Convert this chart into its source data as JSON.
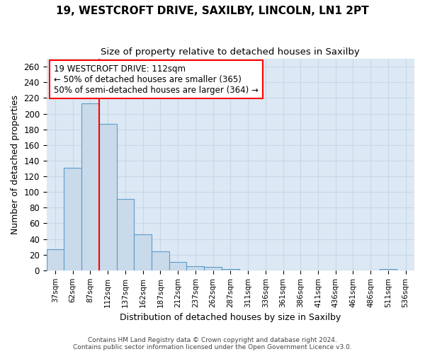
{
  "title1": "19, WESTCROFT DRIVE, SAXILBY, LINCOLN, LN1 2PT",
  "title2": "Size of property relative to detached houses in Saxilby",
  "xlabel": "Distribution of detached houses by size in Saxilby",
  "ylabel": "Number of detached properties",
  "categories": [
    "37sqm",
    "62sqm",
    "87sqm",
    "112sqm",
    "137sqm",
    "162sqm",
    "187sqm",
    "212sqm",
    "237sqm",
    "262sqm",
    "287sqm",
    "311sqm",
    "336sqm",
    "361sqm",
    "386sqm",
    "411sqm",
    "436sqm",
    "461sqm",
    "486sqm",
    "511sqm",
    "536sqm"
  ],
  "values": [
    27,
    131,
    213,
    187,
    91,
    46,
    24,
    11,
    5,
    4,
    2,
    0,
    0,
    0,
    0,
    0,
    0,
    0,
    0,
    2,
    0
  ],
  "bar_color": "#c9daea",
  "bar_edge_color": "#5b9dc9",
  "vline_color": "red",
  "vline_x": 2.5,
  "annotation_line1": "19 WESTCROFT DRIVE: 112sqm",
  "annotation_line2": "← 50% of detached houses are smaller (365)",
  "annotation_line3": "50% of semi-detached houses are larger (364) →",
  "annotation_box_color": "white",
  "annotation_box_edge_color": "red",
  "ylim": [
    0,
    270
  ],
  "yticks": [
    0,
    20,
    40,
    60,
    80,
    100,
    120,
    140,
    160,
    180,
    200,
    220,
    240,
    260
  ],
  "grid_color": "#c8d8e8",
  "background_color": "#dce8f4",
  "footer1": "Contains HM Land Registry data © Crown copyright and database right 2024.",
  "footer2": "Contains public sector information licensed under the Open Government Licence v3.0."
}
